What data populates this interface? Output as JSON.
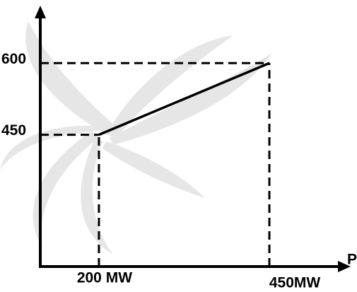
{
  "chart_data": {
    "type": "line",
    "x": [
      200,
      450
    ],
    "values": [
      450,
      600
    ],
    "color": "#000000",
    "xlabel": "P",
    "xlim": [
      114,
      563
    ],
    "ylim": [
      174,
      710
    ],
    "xticks": [
      {
        "value": 200,
        "label": "200 MW"
      },
      {
        "value": 450,
        "label": "450MW"
      }
    ],
    "yticks": [
      450,
      600
    ]
  }
}
